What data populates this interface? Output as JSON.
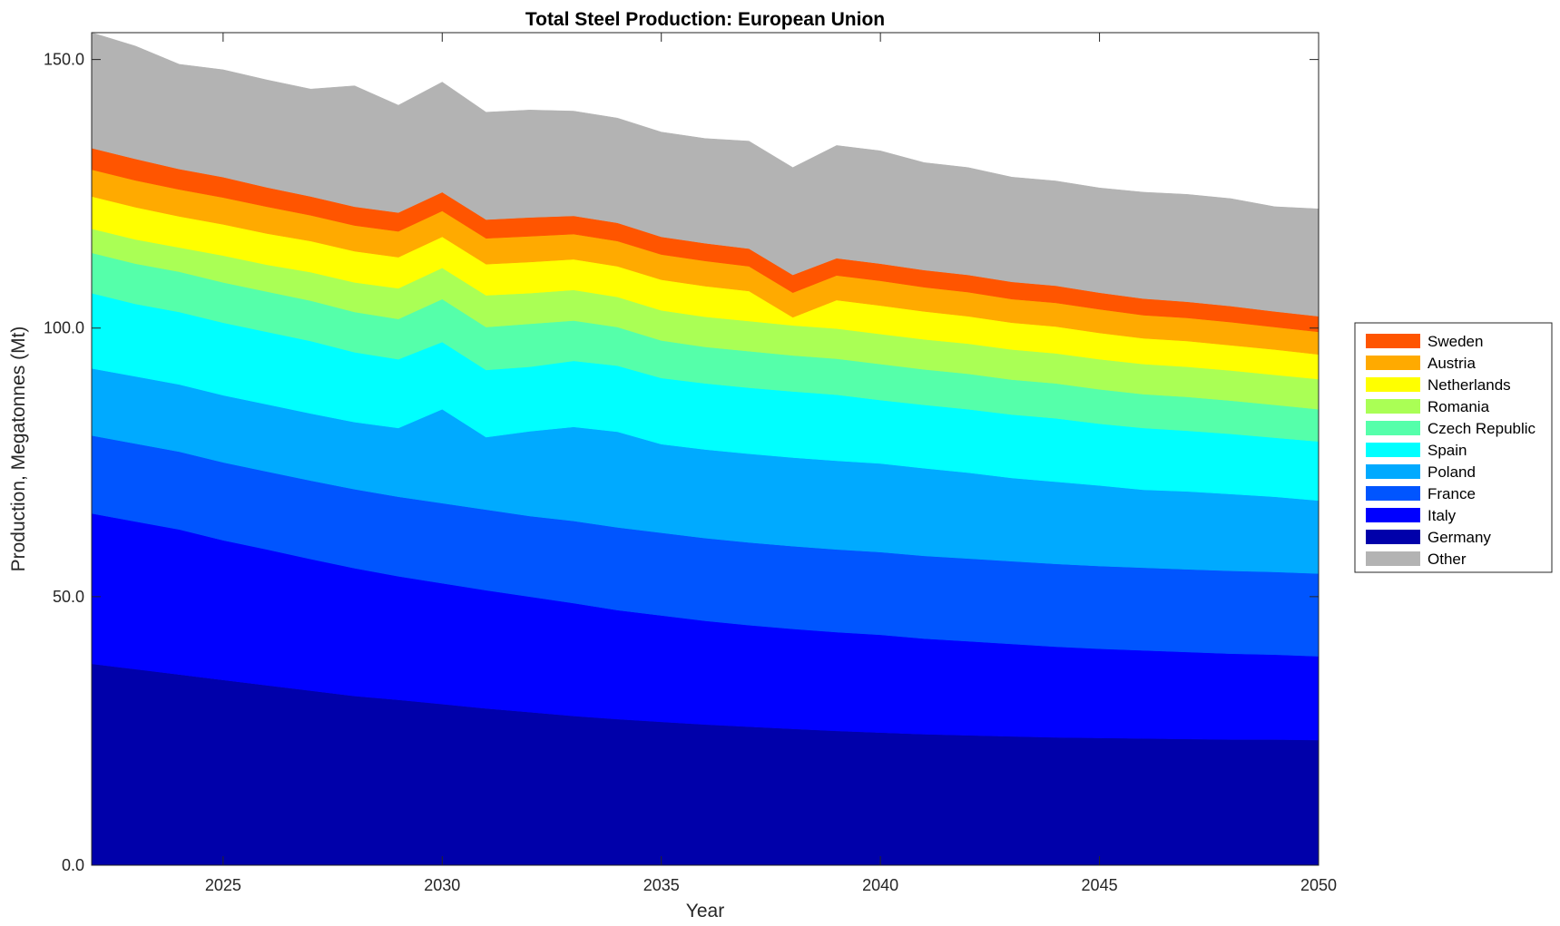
{
  "chart_data": {
    "type": "area",
    "stacked": true,
    "title": "Total Steel Production: European Union",
    "xlabel": "Year",
    "ylabel": "Production, Megatonnes (Mt)",
    "xlim": [
      2022,
      2050
    ],
    "ylim": [
      0,
      155
    ],
    "x_ticks": [
      2025,
      2030,
      2035,
      2040,
      2045,
      2050
    ],
    "y_ticks": [
      0,
      50,
      100,
      150
    ],
    "y_tick_labels": [
      "0.0",
      "50.0",
      "100.0",
      "150.0"
    ],
    "grid": false,
    "legend_position": "right",
    "x": [
      2022,
      2023,
      2024,
      2025,
      2026,
      2027,
      2028,
      2029,
      2030,
      2031,
      2032,
      2033,
      2034,
      2035,
      2036,
      2037,
      2038,
      2039,
      2040,
      2041,
      2042,
      2043,
      2044,
      2045,
      2046,
      2047,
      2048,
      2049,
      2050
    ],
    "series": [
      {
        "name": "Germany",
        "color": "#0000AA",
        "values": [
          37.5,
          36.5,
          35.5,
          34.5,
          33.5,
          32.5,
          31.5,
          30.8,
          30.0,
          29.2,
          28.5,
          27.8,
          27.2,
          26.7,
          26.2,
          25.8,
          25.4,
          25.0,
          24.7,
          24.4,
          24.2,
          24.0,
          23.8,
          23.7,
          23.6,
          23.5,
          23.4,
          23.4,
          23.3
        ]
      },
      {
        "name": "Italy",
        "color": "#0000FF",
        "values": [
          28.0,
          27.5,
          27.0,
          26.0,
          25.3,
          24.5,
          23.8,
          23.0,
          22.5,
          22.0,
          21.5,
          21.0,
          20.3,
          19.8,
          19.3,
          18.9,
          18.6,
          18.4,
          18.2,
          17.8,
          17.5,
          17.2,
          16.9,
          16.6,
          16.4,
          16.2,
          16.0,
          15.8,
          15.6
        ]
      },
      {
        "name": "France",
        "color": "#0055FF",
        "values": [
          14.5,
          14.5,
          14.5,
          14.5,
          14.5,
          14.6,
          14.7,
          14.8,
          14.9,
          15.0,
          15.0,
          15.3,
          15.4,
          15.4,
          15.4,
          15.4,
          15.4,
          15.4,
          15.4,
          15.4,
          15.4,
          15.4,
          15.4,
          15.4,
          15.4,
          15.4,
          15.4,
          15.4,
          15.4
        ]
      },
      {
        "name": "Poland",
        "color": "#00AAFF",
        "values": [
          12.5,
          12.5,
          12.5,
          12.5,
          12.5,
          12.5,
          12.5,
          12.8,
          17.5,
          13.5,
          15.8,
          17.5,
          17.8,
          16.5,
          16.5,
          16.5,
          16.5,
          16.5,
          16.5,
          16.3,
          16.0,
          15.5,
          15.3,
          15.0,
          14.5,
          14.5,
          14.3,
          14.0,
          13.6
        ]
      },
      {
        "name": "Spain",
        "color": "#00FFFF",
        "values": [
          14.0,
          13.5,
          13.5,
          13.5,
          13.5,
          13.5,
          13.0,
          12.8,
          12.5,
          12.5,
          12.0,
          12.3,
          12.3,
          12.3,
          12.3,
          12.3,
          12.3,
          12.3,
          11.8,
          11.8,
          11.8,
          11.8,
          11.8,
          11.5,
          11.5,
          11.3,
          11.2,
          11.0,
          11.0
        ]
      },
      {
        "name": "Czech Republic",
        "color": "#55FFAA",
        "values": [
          7.5,
          7.5,
          7.5,
          7.5,
          7.5,
          7.5,
          7.5,
          7.5,
          8.0,
          8.0,
          8.0,
          7.5,
          7.2,
          7.0,
          6.8,
          6.8,
          6.7,
          6.7,
          6.7,
          6.6,
          6.6,
          6.5,
          6.5,
          6.4,
          6.3,
          6.3,
          6.2,
          6.1,
          6.0
        ]
      },
      {
        "name": "Romania",
        "color": "#AAFF55",
        "values": [
          4.5,
          4.5,
          4.5,
          5.0,
          5.0,
          5.3,
          5.5,
          5.7,
          5.8,
          5.9,
          5.7,
          5.7,
          5.6,
          5.6,
          5.6,
          5.6,
          5.6,
          5.6,
          5.6,
          5.6,
          5.6,
          5.6,
          5.6,
          5.6,
          5.6,
          5.6,
          5.6,
          5.6,
          5.6
        ]
      },
      {
        "name": "Netherlands",
        "color": "#FFFF00",
        "values": [
          6.0,
          6.0,
          5.8,
          5.8,
          5.8,
          5.8,
          5.8,
          5.8,
          5.8,
          5.8,
          5.8,
          5.7,
          5.7,
          5.7,
          5.7,
          5.6,
          1.5,
          5.3,
          5.3,
          5.2,
          5.1,
          5.0,
          5.0,
          4.9,
          4.8,
          4.8,
          4.7,
          4.7,
          4.6
        ]
      },
      {
        "name": "Austria",
        "color": "#FFAA00",
        "values": [
          5.0,
          5.0,
          5.0,
          5.0,
          5.0,
          4.8,
          4.8,
          4.8,
          4.8,
          4.8,
          4.8,
          4.7,
          4.7,
          4.7,
          4.7,
          4.6,
          4.6,
          4.6,
          4.6,
          4.5,
          4.5,
          4.4,
          4.4,
          4.4,
          4.3,
          4.3,
          4.3,
          4.2,
          4.2
        ]
      },
      {
        "name": "Sweden",
        "color": "#FF5500",
        "values": [
          4.0,
          4.0,
          3.8,
          3.8,
          3.6,
          3.5,
          3.5,
          3.5,
          3.5,
          3.5,
          3.5,
          3.4,
          3.4,
          3.3,
          3.3,
          3.3,
          3.3,
          3.2,
          3.2,
          3.2,
          3.2,
          3.2,
          3.2,
          3.1,
          3.1,
          3.0,
          3.0,
          2.9,
          2.9
        ]
      },
      {
        "name": "Other",
        "color": "#B3B3B3",
        "values": [
          22.0,
          21.0,
          19.5,
          20.0,
          20.0,
          20.0,
          22.5,
          20.0,
          20.5,
          20.0,
          20.0,
          19.5,
          19.5,
          19.5,
          19.5,
          20.0,
          20.0,
          21.0,
          21.0,
          20.0,
          20.0,
          19.5,
          19.5,
          19.5,
          19.8,
          20.0,
          20.0,
          19.5,
          20.0
        ]
      }
    ]
  }
}
